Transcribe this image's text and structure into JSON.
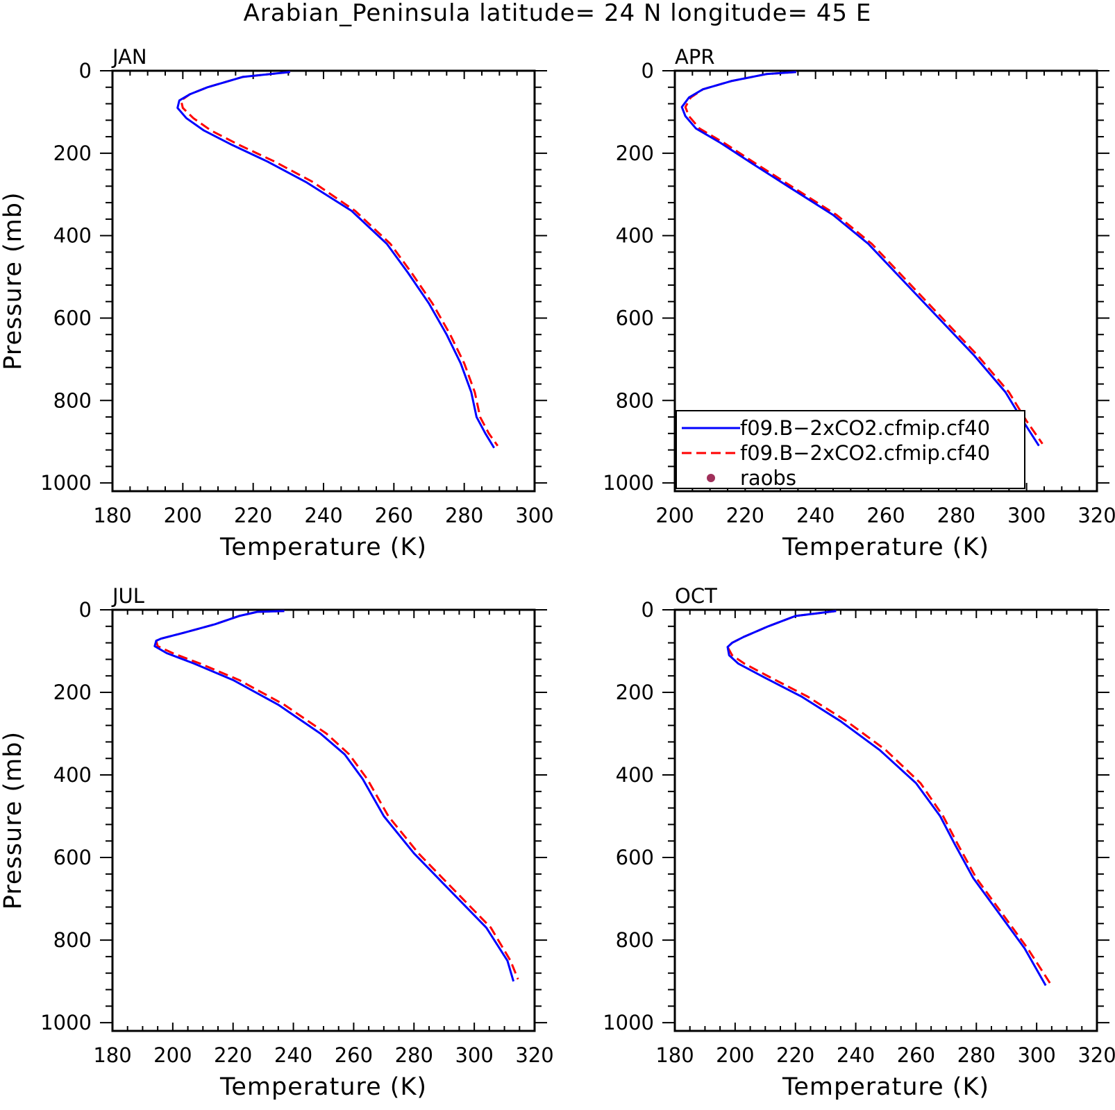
{
  "figure": {
    "title": "Arabian_Peninsula  latitude= 24 N longitude= 45 E"
  },
  "legend": {
    "entries": [
      {
        "label": "f09.B−2xCO2.cfmip.cf40",
        "color": "#0000ff",
        "style": "solid"
      },
      {
        "label": "f09.B−2xCO2.cfmip.cf40",
        "color": "#ff0000",
        "style": "dashed"
      },
      {
        "label": "raobs",
        "color": "#a0305a",
        "style": "marker"
      }
    ]
  },
  "chart_data": [
    {
      "type": "line",
      "title": "JAN",
      "xlabel": "Temperature (K)",
      "ylabel": "Pressure (mb)",
      "xlim": [
        180,
        300
      ],
      "ylim": [
        1020,
        0
      ],
      "xticks": [
        180,
        200,
        220,
        240,
        260,
        280,
        300
      ],
      "yticks": [
        0,
        200,
        400,
        600,
        800,
        1000
      ],
      "y_inverted": true,
      "series": [
        {
          "name": "f09.B−2xCO2.cfmip.cf40",
          "color": "#0000ff",
          "style": "solid",
          "x": [
            230.5,
            217,
            207,
            202,
            199,
            198.5,
            201,
            206,
            214,
            224,
            235,
            248,
            258,
            264,
            270,
            275,
            279,
            282,
            283.5,
            286,
            288.5
          ],
          "y": [
            3,
            15,
            40,
            57,
            72,
            90,
            115,
            145,
            180,
            220,
            270,
            340,
            420,
            490,
            565,
            640,
            710,
            780,
            840,
            880,
            915
          ]
        },
        {
          "name": "f09.B−2xCO2.cfmip.cf40",
          "color": "#ff0000",
          "style": "dashed",
          "x": [
            230.5,
            217,
            207,
            202,
            199.5,
            200,
            203,
            208,
            216,
            226,
            237,
            249,
            259,
            265,
            271,
            276,
            280,
            283,
            284.5,
            287,
            289.5
          ],
          "y": [
            3,
            15,
            40,
            57,
            72,
            90,
            115,
            145,
            180,
            220,
            270,
            340,
            420,
            490,
            565,
            640,
            710,
            780,
            840,
            880,
            910
          ]
        }
      ]
    },
    {
      "type": "line",
      "title": "APR",
      "xlabel": "Temperature (K)",
      "ylabel": "",
      "xlim": [
        200,
        320
      ],
      "ylim": [
        1020,
        0
      ],
      "xticks": [
        200,
        220,
        240,
        260,
        280,
        300,
        320
      ],
      "yticks": [
        0,
        200,
        400,
        600,
        800,
        1000
      ],
      "y_inverted": true,
      "series": [
        {
          "name": "f09.B−2xCO2.cfmip.cf40",
          "color": "#0000ff",
          "style": "solid",
          "x": [
            234.5,
            226,
            216,
            208,
            204,
            202,
            203,
            206,
            213,
            222,
            233,
            245,
            255,
            265,
            275,
            285,
            294,
            299,
            303.5
          ],
          "y": [
            3,
            8,
            25,
            45,
            65,
            88,
            110,
            140,
            175,
            225,
            285,
            350,
            420,
            510,
            600,
            690,
            780,
            850,
            910
          ]
        },
        {
          "name": "f09.B−2xCO2.cfmip.cf40",
          "color": "#ff0000",
          "style": "dashed",
          "x": [
            234.5,
            226,
            216,
            208,
            204.5,
            203,
            204,
            207,
            214,
            223,
            234,
            246,
            256,
            266,
            276,
            286,
            295,
            300,
            304.5
          ],
          "y": [
            3,
            8,
            25,
            45,
            65,
            88,
            110,
            140,
            175,
            225,
            285,
            350,
            420,
            510,
            600,
            690,
            780,
            850,
            905
          ]
        }
      ]
    },
    {
      "type": "line",
      "title": "JUL",
      "xlabel": "Temperature (K)",
      "ylabel": "Pressure (mb)",
      "xlim": [
        180,
        320
      ],
      "ylim": [
        1020,
        0
      ],
      "xticks": [
        180,
        200,
        220,
        240,
        260,
        280,
        300,
        320
      ],
      "yticks": [
        0,
        200,
        400,
        600,
        800,
        1000
      ],
      "y_inverted": true,
      "series": [
        {
          "name": "f09.B−2xCO2.cfmip.cf40",
          "color": "#0000ff",
          "style": "solid",
          "x": [
            237,
            228,
            222,
            214,
            204,
            196,
            194.5,
            194,
            198,
            207,
            220,
            235,
            249,
            257,
            263,
            270,
            280,
            292,
            304,
            311,
            313
          ],
          "y": [
            3,
            5,
            15,
            35,
            55,
            70,
            75,
            88,
            105,
            130,
            170,
            230,
            300,
            350,
            410,
            500,
            590,
            680,
            770,
            850,
            900
          ]
        },
        {
          "name": "f09.B−2xCO2.cfmip.cf40",
          "color": "#ff0000",
          "style": "dashed",
          "x": [
            237,
            228,
            222,
            214,
            204,
            196,
            194.5,
            195,
            200,
            209,
            222,
            237,
            251,
            258.5,
            264.5,
            271.5,
            281.5,
            293.5,
            305.5,
            312,
            314.5
          ],
          "y": [
            3,
            5,
            15,
            35,
            55,
            70,
            75,
            88,
            105,
            130,
            170,
            230,
            300,
            350,
            410,
            500,
            590,
            680,
            770,
            850,
            895
          ]
        }
      ]
    },
    {
      "type": "line",
      "title": "OCT",
      "xlabel": "Temperature (K)",
      "ylabel": "",
      "xlim": [
        180,
        320
      ],
      "ylim": [
        1020,
        0
      ],
      "xticks": [
        180,
        200,
        220,
        240,
        260,
        280,
        300,
        320
      ],
      "yticks": [
        0,
        200,
        400,
        600,
        800,
        1000
      ],
      "y_inverted": true,
      "series": [
        {
          "name": "f09.B−2xCO2.cfmip.cf40",
          "color": "#0000ff",
          "style": "solid",
          "x": [
            233.5,
            220,
            211,
            203,
            199,
            197.5,
            198,
            201,
            210,
            222,
            235,
            248,
            260,
            268,
            273,
            279,
            287,
            296,
            303
          ],
          "y": [
            3,
            15,
            40,
            65,
            80,
            90,
            110,
            130,
            165,
            210,
            270,
            340,
            420,
            500,
            570,
            650,
            730,
            820,
            910
          ]
        },
        {
          "name": "f09.B−2xCO2.cfmip.cf40",
          "color": "#ff0000",
          "style": "dashed",
          "x": [
            233.5,
            220,
            211,
            203,
            199,
            197.5,
            199,
            203,
            212,
            224,
            237,
            250,
            261.5,
            269,
            274,
            280,
            288,
            297,
            304.5
          ],
          "y": [
            3,
            15,
            40,
            65,
            80,
            90,
            110,
            130,
            165,
            210,
            270,
            340,
            420,
            500,
            570,
            650,
            730,
            820,
            905
          ]
        }
      ]
    }
  ]
}
